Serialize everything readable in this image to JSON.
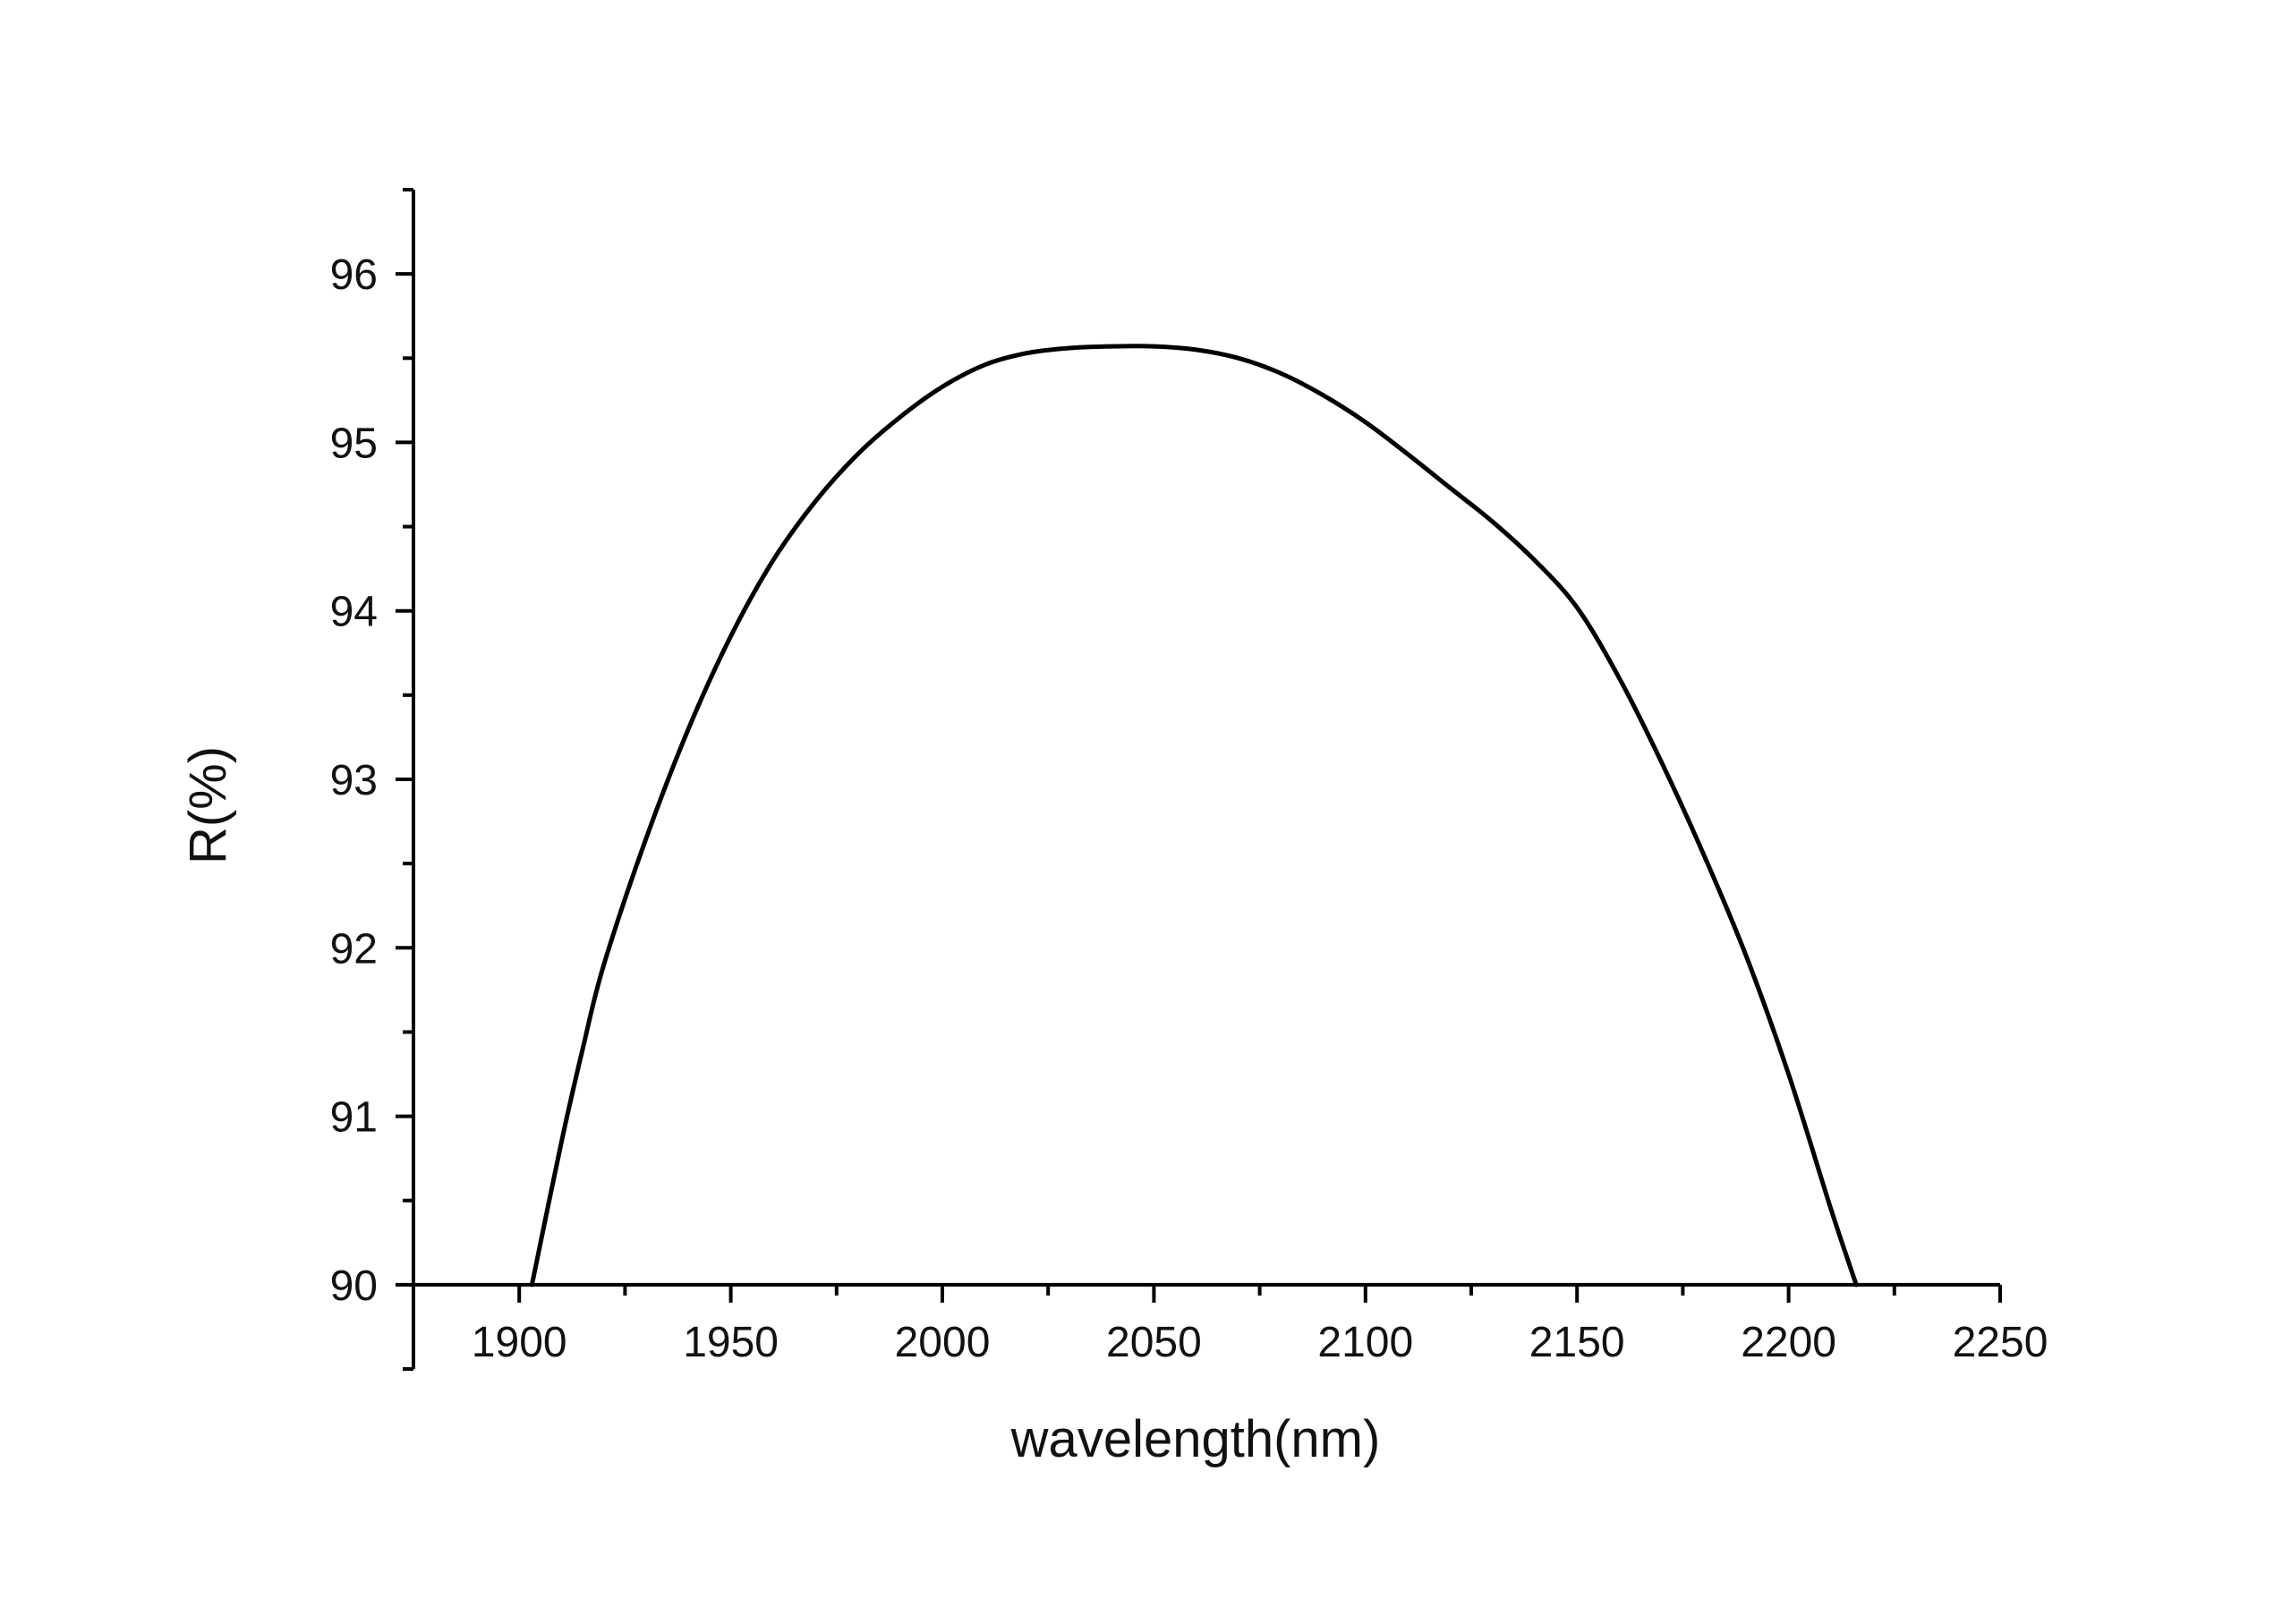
{
  "chart_data": {
    "type": "line",
    "xlabel": "wavelength(nm)",
    "ylabel": "R(%)",
    "xlim": [
      1875,
      2250
    ],
    "ylim": [
      89.5,
      96.5
    ],
    "x_ticks": [
      1900,
      1950,
      2000,
      2050,
      2100,
      2150,
      2200,
      2250
    ],
    "y_ticks": [
      90,
      91,
      92,
      93,
      94,
      95,
      96
    ],
    "x_tick_labels": [
      "1900",
      "1950",
      "2000",
      "2050",
      "2100",
      "2150",
      "2200",
      "2250"
    ],
    "y_tick_labels": [
      "90",
      "91",
      "92",
      "93",
      "94",
      "95",
      "96"
    ],
    "grid": false,
    "line_color": "#000000",
    "series": [
      {
        "x": [
          1903,
          1910,
          1915,
          1920,
          1930,
          1940,
          1950,
          1960,
          1970,
          1980,
          1990,
          2000,
          2010,
          2020,
          2030,
          2040,
          2050,
          2060,
          2070,
          2080,
          2090,
          2100,
          2110,
          2120,
          2130,
          2140,
          2150,
          2160,
          2170,
          2180,
          2190,
          2200,
          2210,
          2216
        ],
        "y": [
          90.0,
          90.85,
          91.4,
          91.9,
          92.65,
          93.3,
          93.85,
          94.3,
          94.65,
          94.93,
          95.15,
          95.33,
          95.46,
          95.53,
          95.56,
          95.57,
          95.57,
          95.55,
          95.5,
          95.41,
          95.28,
          95.12,
          94.93,
          94.73,
          94.53,
          94.3,
          94.02,
          93.6,
          93.1,
          92.55,
          91.95,
          91.25,
          90.45,
          90.0
        ]
      }
    ]
  }
}
